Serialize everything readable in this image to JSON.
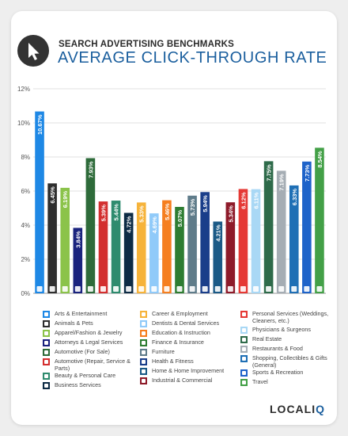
{
  "header": {
    "subtitle": "SEARCH ADVERTISING BENCHMARKS",
    "title": "AVERAGE CLICK-THROUGH RATE"
  },
  "brand": {
    "logo_main": "LOCALI",
    "logo_accent": "Q"
  },
  "chart_data": {
    "type": "bar",
    "ylim": [
      0,
      12
    ],
    "yticks": [
      "0%",
      "2%",
      "4%",
      "6%",
      "8%",
      "10%",
      "12%"
    ],
    "grid": true,
    "categories": [
      "Arts & Entertainment",
      "Animals & Pets",
      "Apparel/Fashion & Jewelry",
      "Attorneys & Legal Services",
      "Automotive (For Sale)",
      "Automotive (Repair, Service & Parts)",
      "Beauty & Personal Care",
      "Business Services",
      "Career & Employment",
      "Dentists & Dental Services",
      "Education & Instruction",
      "Finance & Insurance",
      "Furniture",
      "Health & Fitness",
      "Home & Home Improvement",
      "Industrial & Commercial",
      "Personal Services (Weddings, Cleaners, etc.)",
      "Physicians & Surgeons",
      "Real Estate",
      "Restaurants & Food",
      "Shopping, Collectibles & Gifts (General)",
      "Sports & Recreation",
      "Travel"
    ],
    "values": [
      10.67,
      6.45,
      6.19,
      3.84,
      7.93,
      5.39,
      5.44,
      4.72,
      5.33,
      4.69,
      5.46,
      5.07,
      5.73,
      5.94,
      4.21,
      5.34,
      6.12,
      6.11,
      7.75,
      7.19,
      6.33,
      7.73,
      8.54
    ],
    "labels": [
      "10.67%",
      "6.45%",
      "6.19%",
      "3.84%",
      "7.93%",
      "5.39%",
      "5.44%",
      "4.72%",
      "5.33%",
      "4.69%",
      "5.46%",
      "5.07%",
      "5.73%",
      "5.94%",
      "4.21%",
      "5.34%",
      "6.12%",
      "6.11%",
      "7.75%",
      "7.19%",
      "6.33%",
      "7.73%",
      "8.54%"
    ],
    "colors": [
      "#1e88e5",
      "#2f2f2f",
      "#8bc34a",
      "#1a237e",
      "#2e6b3a",
      "#d32f2f",
      "#2e8b6e",
      "#0d2b45",
      "#f6b33a",
      "#90caf9",
      "#f57f20",
      "#2e7d32",
      "#5f7c8a",
      "#1a3e8a",
      "#1b5a86",
      "#8e1b2a",
      "#e53935",
      "#a9d8f5",
      "#2e6b4a",
      "#a5adb4",
      "#1f6fb5",
      "#1e63c9",
      "#43a047"
    ],
    "icons": [
      "arts-icon",
      "paw-icon",
      "shirt-icon",
      "gavel-icon",
      "car-icon",
      "wrench-icon",
      "lipstick-icon",
      "briefcase-icon",
      "career-icon",
      "tooth-icon",
      "graduation-icon",
      "finance-icon",
      "sofa-icon",
      "heart-icon",
      "home-icon",
      "factory-icon",
      "personal-icon",
      "physician-icon",
      "real-estate-icon",
      "restaurant-icon",
      "shopping-icon",
      "sports-icon",
      "travel-icon"
    ]
  }
}
